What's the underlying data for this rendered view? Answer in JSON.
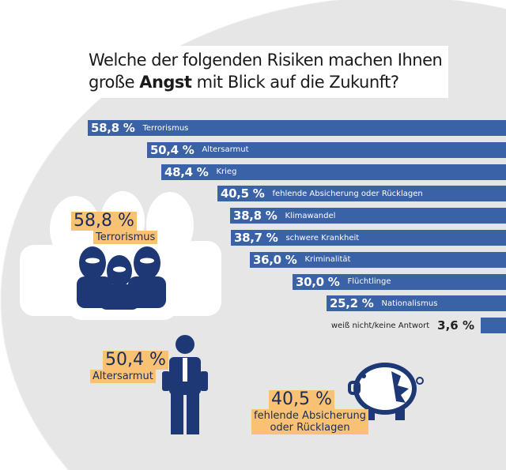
{
  "title": {
    "part1": "Welche der folgenden Risiken machen Ihnen",
    "part2_prefix": "große ",
    "part2_bold": "Angst",
    "part2_suffix": " mit Blick auf die Zukunft?"
  },
  "colors": {
    "bar": "#3a62a6",
    "highlight": "#f9c173",
    "icon_dark": "#1e3876",
    "background_circle": "#e6e6e6"
  },
  "chart_data": {
    "type": "bar",
    "orientation": "horizontal",
    "unit": "%",
    "categories": [
      "Terrorismus",
      "Altersarmut",
      "Krieg",
      "fehlende Absicherung oder Rücklagen",
      "Klimawandel",
      "schwere Krankheit",
      "Kriminalität",
      "Flüchtlinge",
      "Nationalismus",
      "weiß nicht/keine Antwort"
    ],
    "values": [
      58.8,
      50.4,
      48.4,
      40.5,
      38.8,
      38.7,
      36.0,
      30.0,
      25.2,
      3.6
    ],
    "value_labels": [
      "58,8 %",
      "50,4 %",
      "48,4 %",
      "40,5 %",
      "38,8 %",
      "38,7 %",
      "36,0 %",
      "30,0 %",
      "25,2 %",
      "3,6 %"
    ]
  },
  "highlights": [
    {
      "value": "58,8 %",
      "label": "Terrorismus",
      "icon": "masked-terrorists-icon"
    },
    {
      "value": "50,4 %",
      "label": "Altersarmut",
      "icon": "man-empty-pockets-icon"
    },
    {
      "value": "40,5 %",
      "label1": "fehlende Absicherung",
      "label2": "oder Rücklagen",
      "icon": "broken-piggy-bank-icon"
    }
  ]
}
